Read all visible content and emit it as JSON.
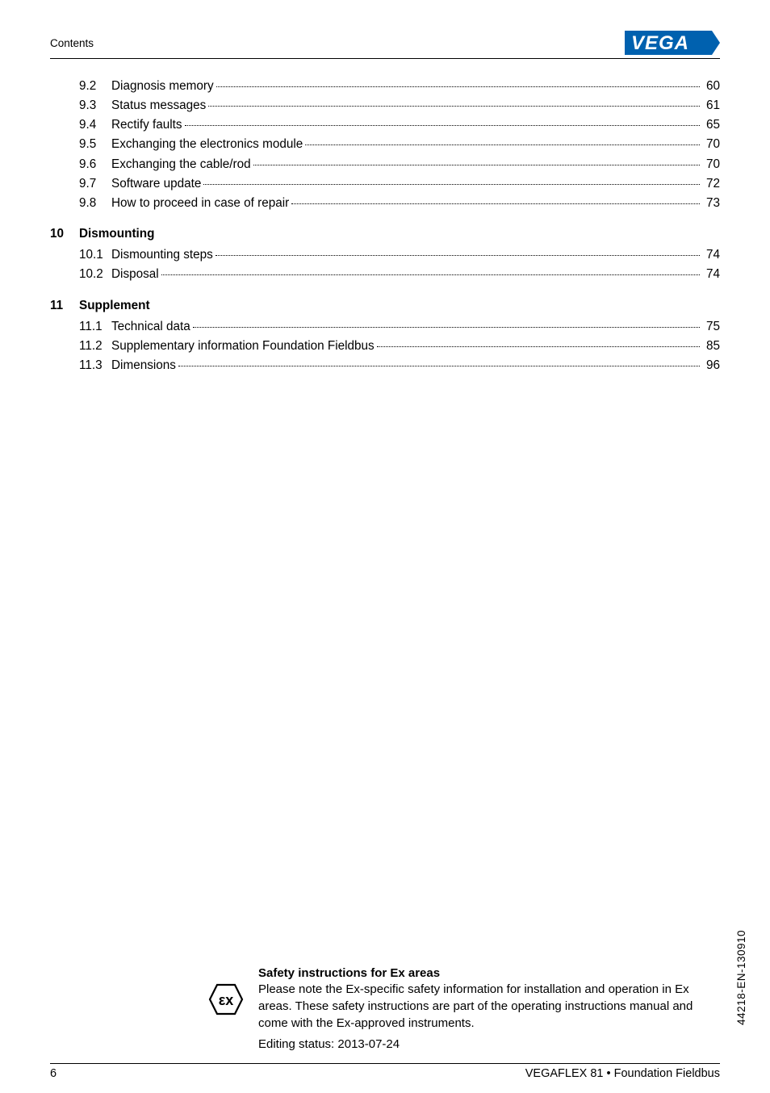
{
  "header": {
    "section": "Contents"
  },
  "logo": {
    "bg": "#0061af",
    "fg": "#ffffff",
    "text": "VEGA"
  },
  "toc": {
    "groups": [
      {
        "heading": null,
        "items": [
          {
            "num": "9.2",
            "title": "Diagnosis memory",
            "page": "60"
          },
          {
            "num": "9.3",
            "title": "Status messages",
            "page": "61"
          },
          {
            "num": "9.4",
            "title": "Rectify faults",
            "page": "65"
          },
          {
            "num": "9.5",
            "title": "Exchanging the electronics module",
            "page": "70"
          },
          {
            "num": "9.6",
            "title": "Exchanging the cable/rod",
            "page": "70"
          },
          {
            "num": "9.7",
            "title": "Software update",
            "page": "72"
          },
          {
            "num": "9.8",
            "title": "How to proceed in case of repair",
            "page": "73"
          }
        ]
      },
      {
        "heading": {
          "num": "10",
          "title": "Dismounting"
        },
        "items": [
          {
            "num": "10.1",
            "title": "Dismounting steps",
            "page": "74"
          },
          {
            "num": "10.2",
            "title": "Disposal",
            "page": "74"
          }
        ]
      },
      {
        "heading": {
          "num": "11",
          "title": "Supplement"
        },
        "items": [
          {
            "num": "11.1",
            "title": "Technical data",
            "page": "75"
          },
          {
            "num": "11.2",
            "title": "Supplementary information Foundation Fieldbus",
            "page": "85"
          },
          {
            "num": "11.3",
            "title": "Dimensions",
            "page": "96"
          }
        ]
      }
    ]
  },
  "safety": {
    "heading": "Safety instructions for Ex areas",
    "body1": "Please note the Ex-specific safety information for installation and operation in Ex areas. These safety instructions are part of the operating instructions manual and come with the Ex-approved instruments.",
    "body2": "Editing status: 2013-07-24",
    "icon_label": "εx"
  },
  "footer": {
    "page": "6",
    "doc": "VEGAFLEX 81 • Foundation Fieldbus"
  },
  "side_code": "44218-EN-130910"
}
